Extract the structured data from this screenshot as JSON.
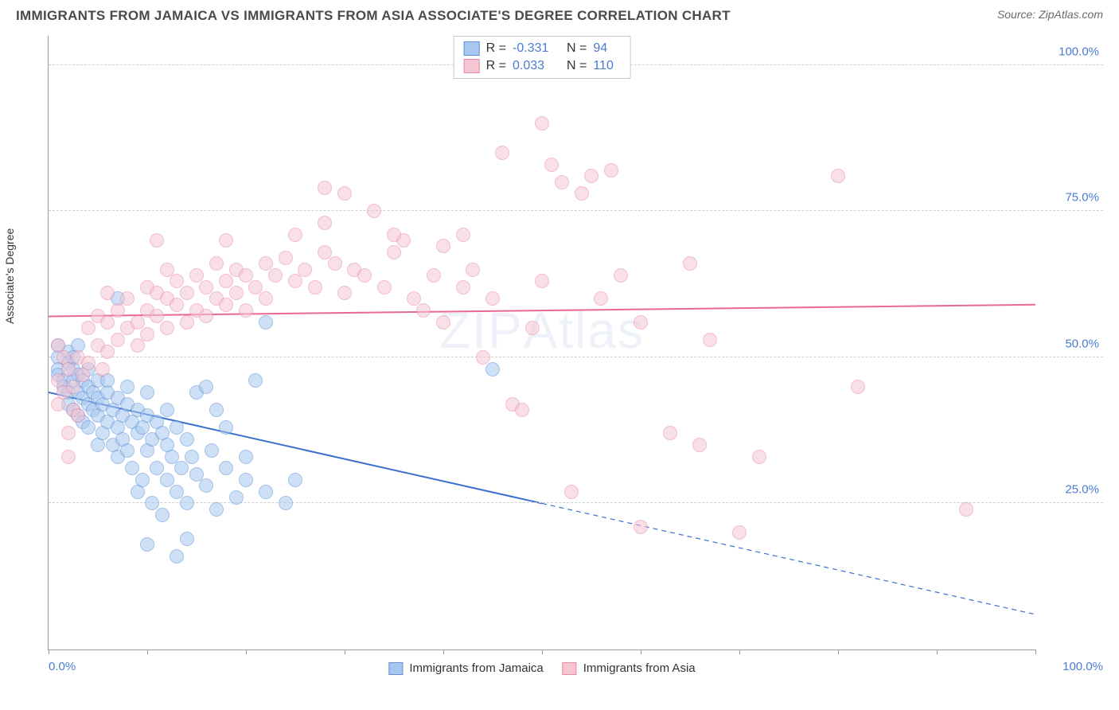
{
  "header": {
    "title": "IMMIGRANTS FROM JAMAICA VS IMMIGRANTS FROM ASIA ASSOCIATE'S DEGREE CORRELATION CHART",
    "source": "Source: ZipAtlas.com"
  },
  "chart": {
    "type": "scatter",
    "ylabel": "Associate's Degree",
    "xlim": [
      0,
      100
    ],
    "ylim": [
      0,
      105
    ],
    "ygrid": [
      25,
      50,
      75,
      100
    ],
    "ygrid_labels": [
      "25.0%",
      "50.0%",
      "75.0%",
      "100.0%"
    ],
    "xtick_positions": [
      0,
      10,
      20,
      30,
      40,
      50,
      60,
      70,
      80,
      90,
      100
    ],
    "xaxis_labels": {
      "left": "0.0%",
      "right": "100.0%"
    },
    "grid_color": "#d0d0d0",
    "axis_color": "#999999",
    "background_color": "#ffffff",
    "marker_radius": 9,
    "marker_opacity": 0.55,
    "watermark": "ZIPAtlas",
    "series": [
      {
        "name": "Immigrants from Jamaica",
        "color_fill": "#a7c7ef",
        "color_stroke": "#5b8fd6",
        "r_value": "-0.331",
        "n_value": "94",
        "trend": {
          "y_at_x0": 44,
          "y_at_x100": 6,
          "solid_until_x": 50,
          "line_color": "#3b6fd0",
          "line_width": 2
        },
        "points": [
          [
            1,
            52
          ],
          [
            1,
            50
          ],
          [
            1,
            48
          ],
          [
            1,
            47
          ],
          [
            1.5,
            46
          ],
          [
            1.5,
            45
          ],
          [
            2,
            44
          ],
          [
            2,
            51
          ],
          [
            2,
            49
          ],
          [
            2,
            42
          ],
          [
            2.5,
            48
          ],
          [
            2.5,
            46
          ],
          [
            2.5,
            41
          ],
          [
            2.5,
            50
          ],
          [
            3,
            47
          ],
          [
            3,
            44
          ],
          [
            3,
            40
          ],
          [
            3,
            52
          ],
          [
            3.5,
            43
          ],
          [
            3.5,
            46
          ],
          [
            3.5,
            39
          ],
          [
            4,
            45
          ],
          [
            4,
            42
          ],
          [
            4,
            48
          ],
          [
            4,
            38
          ],
          [
            4.5,
            44
          ],
          [
            4.5,
            41
          ],
          [
            5,
            46
          ],
          [
            5,
            40
          ],
          [
            5,
            43
          ],
          [
            5,
            35
          ],
          [
            5.5,
            42
          ],
          [
            5.5,
            37
          ],
          [
            6,
            44
          ],
          [
            6,
            39
          ],
          [
            6,
            46
          ],
          [
            6.5,
            41
          ],
          [
            6.5,
            35
          ],
          [
            7,
            43
          ],
          [
            7,
            38
          ],
          [
            7,
            33
          ],
          [
            7.5,
            40
          ],
          [
            7.5,
            36
          ],
          [
            8,
            42
          ],
          [
            8,
            34
          ],
          [
            8,
            45
          ],
          [
            8.5,
            39
          ],
          [
            8.5,
            31
          ],
          [
            9,
            41
          ],
          [
            9,
            37
          ],
          [
            9,
            27
          ],
          [
            9.5,
            38
          ],
          [
            9.5,
            29
          ],
          [
            10,
            40
          ],
          [
            10,
            34
          ],
          [
            10,
            44
          ],
          [
            10.5,
            36
          ],
          [
            10.5,
            25
          ],
          [
            11,
            39
          ],
          [
            11,
            31
          ],
          [
            11.5,
            37
          ],
          [
            11.5,
            23
          ],
          [
            12,
            41
          ],
          [
            12,
            29
          ],
          [
            12,
            35
          ],
          [
            12.5,
            33
          ],
          [
            13,
            38
          ],
          [
            13,
            27
          ],
          [
            13,
            16
          ],
          [
            13.5,
            31
          ],
          [
            14,
            36
          ],
          [
            14,
            25
          ],
          [
            14,
            19
          ],
          [
            14.5,
            33
          ],
          [
            15,
            30
          ],
          [
            15,
            44
          ],
          [
            16,
            45
          ],
          [
            16,
            28
          ],
          [
            16.5,
            34
          ],
          [
            17,
            41
          ],
          [
            17,
            24
          ],
          [
            18,
            31
          ],
          [
            18,
            38
          ],
          [
            19,
            26
          ],
          [
            20,
            33
          ],
          [
            20,
            29
          ],
          [
            21,
            46
          ],
          [
            22,
            27
          ],
          [
            22,
            56
          ],
          [
            24,
            25
          ],
          [
            25,
            29
          ],
          [
            7,
            60
          ],
          [
            10,
            18
          ],
          [
            45,
            48
          ]
        ]
      },
      {
        "name": "Immigrants from Asia",
        "color_fill": "#f5c5d2",
        "color_stroke": "#e88aa5",
        "r_value": "0.033",
        "n_value": "110",
        "trend": {
          "y_at_x0": 57,
          "y_at_x100": 59,
          "solid_until_x": 100,
          "line_color": "#e86a92",
          "line_width": 2
        },
        "points": [
          [
            1,
            52
          ],
          [
            1,
            46
          ],
          [
            1,
            42
          ],
          [
            1.5,
            50
          ],
          [
            1.5,
            44
          ],
          [
            2,
            48
          ],
          [
            2,
            37
          ],
          [
            2.5,
            45
          ],
          [
            2.5,
            41
          ],
          [
            2,
            33
          ],
          [
            3,
            50
          ],
          [
            3,
            40
          ],
          [
            3.5,
            47
          ],
          [
            4,
            55
          ],
          [
            4,
            49
          ],
          [
            5,
            57
          ],
          [
            5,
            52
          ],
          [
            5.5,
            48
          ],
          [
            6,
            56
          ],
          [
            6,
            51
          ],
          [
            6,
            61
          ],
          [
            7,
            53
          ],
          [
            7,
            58
          ],
          [
            8,
            55
          ],
          [
            8,
            60
          ],
          [
            9,
            56
          ],
          [
            9,
            52
          ],
          [
            10,
            58
          ],
          [
            10,
            62
          ],
          [
            10,
            54
          ],
          [
            11,
            57
          ],
          [
            11,
            61
          ],
          [
            12,
            60
          ],
          [
            12,
            55
          ],
          [
            12,
            65
          ],
          [
            13,
            59
          ],
          [
            13,
            63
          ],
          [
            14,
            61
          ],
          [
            14,
            56
          ],
          [
            15,
            58
          ],
          [
            15,
            64
          ],
          [
            16,
            62
          ],
          [
            16,
            57
          ],
          [
            17,
            60
          ],
          [
            17,
            66
          ],
          [
            18,
            63
          ],
          [
            18,
            59
          ],
          [
            19,
            61
          ],
          [
            19,
            65
          ],
          [
            20,
            64
          ],
          [
            20,
            58
          ],
          [
            21,
            62
          ],
          [
            22,
            66
          ],
          [
            22,
            60
          ],
          [
            23,
            64
          ],
          [
            24,
            67
          ],
          [
            25,
            63
          ],
          [
            25,
            71
          ],
          [
            26,
            65
          ],
          [
            27,
            62
          ],
          [
            28,
            68
          ],
          [
            28,
            73
          ],
          [
            29,
            66
          ],
          [
            30,
            61
          ],
          [
            31,
            65
          ],
          [
            32,
            64
          ],
          [
            33,
            75
          ],
          [
            34,
            62
          ],
          [
            35,
            68
          ],
          [
            36,
            70
          ],
          [
            37,
            60
          ],
          [
            38,
            58
          ],
          [
            39,
            64
          ],
          [
            40,
            56
          ],
          [
            42,
            62
          ],
          [
            43,
            65
          ],
          [
            44,
            50
          ],
          [
            45,
            60
          ],
          [
            46,
            85
          ],
          [
            47,
            42
          ],
          [
            48,
            41
          ],
          [
            49,
            55
          ],
          [
            50,
            63
          ],
          [
            50,
            90
          ],
          [
            51,
            83
          ],
          [
            52,
            80
          ],
          [
            53,
            27
          ],
          [
            54,
            78
          ],
          [
            55,
            81
          ],
          [
            56,
            60
          ],
          [
            57,
            82
          ],
          [
            58,
            64
          ],
          [
            60,
            56
          ],
          [
            60,
            21
          ],
          [
            63,
            37
          ],
          [
            65,
            66
          ],
          [
            66,
            35
          ],
          [
            67,
            53
          ],
          [
            70,
            20
          ],
          [
            72,
            33
          ],
          [
            80,
            81
          ],
          [
            82,
            45
          ],
          [
            93,
            24
          ],
          [
            40,
            69
          ],
          [
            42,
            71
          ],
          [
            35,
            71
          ],
          [
            18,
            70
          ],
          [
            30,
            78
          ],
          [
            28,
            79
          ],
          [
            11,
            70
          ]
        ]
      }
    ],
    "legend_top": {
      "border_color": "#c8c8c8"
    },
    "label_color": "#4a7bd0",
    "title_fontsize": 17,
    "label_fontsize": 14
  }
}
